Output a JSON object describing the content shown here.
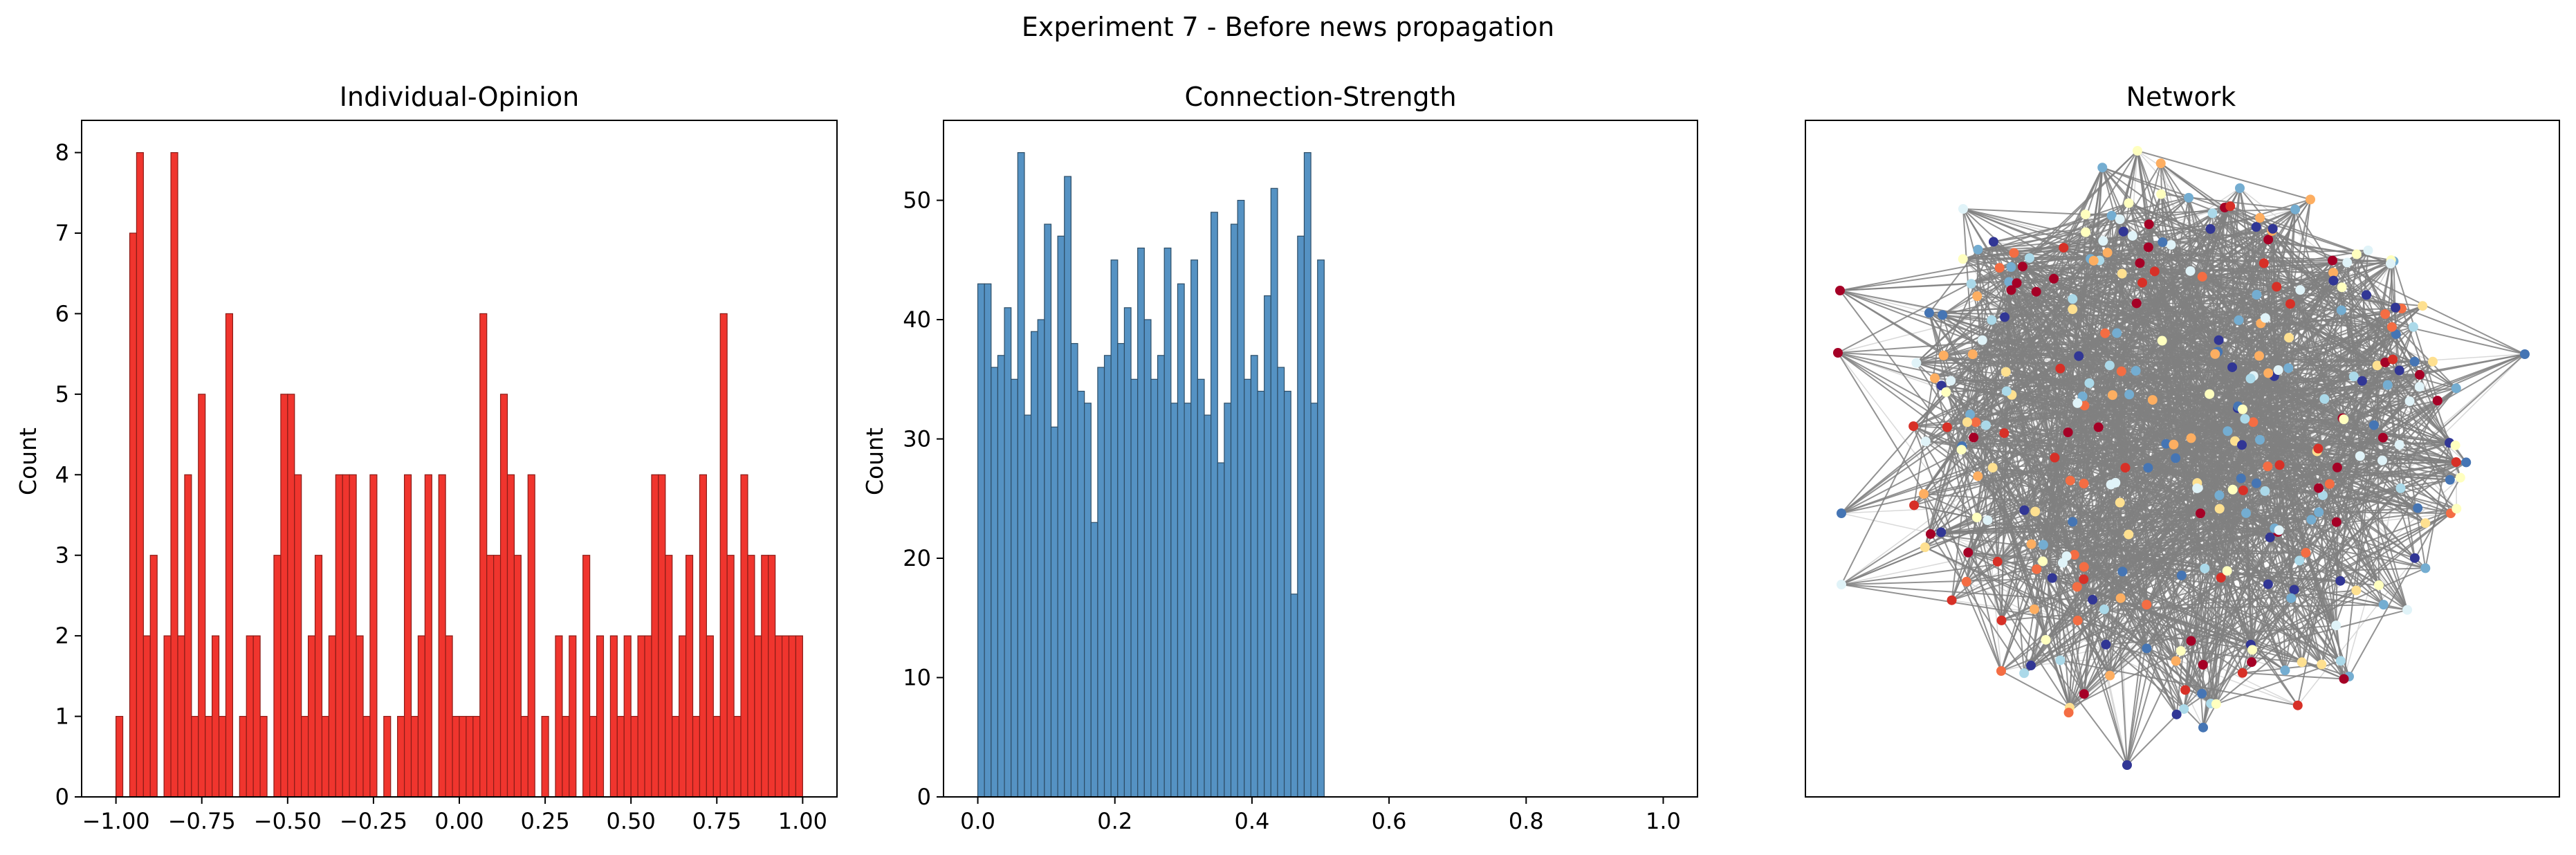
{
  "figure": {
    "suptitle": "Experiment 7 - Before news propagation"
  },
  "colors": {
    "opinion_bar": "#f0352e",
    "opinion_edge": "#8b1c17",
    "strength_bar": "#5592c3",
    "strength_edge": "#2d4d66",
    "edge_dark": "#808080",
    "edge_light": "#d9d9d9",
    "node_palette": [
      "#a50026",
      "#d73027",
      "#f46d43",
      "#fdae61",
      "#fee090",
      "#ffffbf",
      "#e0f3f8",
      "#abd9e9",
      "#74add1",
      "#4575b4",
      "#313695"
    ]
  },
  "chart_data": [
    {
      "type": "bar",
      "title": "Individual-Opinion",
      "xlabel": "",
      "ylabel": "Count",
      "xlim": [
        -1.1,
        1.1
      ],
      "ylim": [
        0,
        8.4
      ],
      "bin_range": [
        -1.0,
        1.0
      ],
      "xticks": [
        -1.0,
        -0.75,
        -0.5,
        -0.25,
        0.0,
        0.25,
        0.5,
        0.75,
        1.0
      ],
      "xtick_labels": [
        "−1.00",
        "−0.75",
        "−0.50",
        "−0.25",
        "0.00",
        "0.25",
        "0.50",
        "0.75",
        "1.00"
      ],
      "yticks": [
        0,
        1,
        2,
        3,
        4,
        5,
        6,
        7,
        8
      ],
      "ytick_labels": [
        "0",
        "1",
        "2",
        "3",
        "4",
        "5",
        "6",
        "7",
        "8"
      ],
      "values": [
        1,
        0,
        7,
        8,
        2,
        3,
        0,
        2,
        8,
        2,
        4,
        1,
        5,
        1,
        2,
        1,
        6,
        0,
        1,
        2,
        2,
        1,
        0,
        3,
        5,
        5,
        4,
        1,
        2,
        3,
        1,
        2,
        4,
        4,
        4,
        2,
        1,
        4,
        0,
        1,
        0,
        1,
        4,
        1,
        2,
        4,
        0,
        4,
        2,
        1,
        1,
        1,
        1,
        6,
        3,
        3,
        5,
        4,
        3,
        1,
        4,
        0,
        1,
        0,
        2,
        1,
        2,
        0,
        3,
        1,
        2,
        0,
        2,
        1,
        2,
        1,
        2,
        2,
        4,
        4,
        3,
        1,
        2,
        3,
        1,
        4,
        2,
        1,
        6,
        3,
        1,
        4,
        3,
        2,
        3,
        3,
        2,
        2,
        2,
        2
      ]
    },
    {
      "type": "bar",
      "title": "Connection-Strength",
      "xlabel": "",
      "ylabel": "Count",
      "xlim": [
        -0.05,
        1.05
      ],
      "ylim": [
        0,
        56.7
      ],
      "bin_range": [
        0.0,
        0.5054
      ],
      "xticks": [
        0.0,
        0.2,
        0.4,
        0.6,
        0.8,
        1.0
      ],
      "xtick_labels": [
        "0.0",
        "0.2",
        "0.4",
        "0.6",
        "0.8",
        "1.0"
      ],
      "yticks": [
        0,
        10,
        20,
        30,
        40,
        50
      ],
      "ytick_labels": [
        "0",
        "10",
        "20",
        "30",
        "40",
        "50"
      ],
      "values": [
        43,
        43,
        36,
        37,
        41,
        35,
        54,
        32,
        39,
        40,
        48,
        31,
        47,
        52,
        38,
        34,
        33,
        23,
        36,
        37,
        45,
        38,
        41,
        35,
        46,
        40,
        35,
        37,
        46,
        33,
        43,
        33,
        45,
        35,
        32,
        49,
        28,
        33,
        48,
        50,
        35,
        37,
        34,
        42,
        51,
        36,
        34,
        17,
        47,
        54,
        33,
        45
      ]
    }
  ],
  "network": {
    "title": "Network"
  }
}
